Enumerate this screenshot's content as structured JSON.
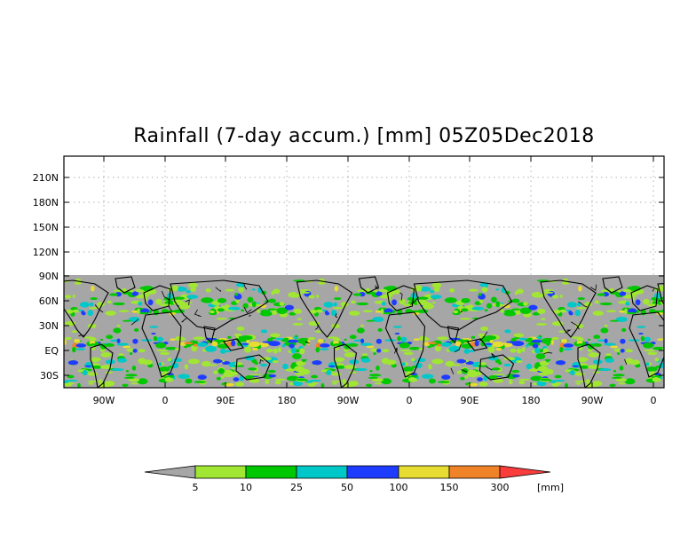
{
  "title": "Rainfall (7-day accum.) [mm] 05Z05Dec2018",
  "y_axis": {
    "labels": [
      "210N",
      "180N",
      "150N",
      "120N",
      "90N",
      "60N",
      "30N",
      "EQ",
      "30S"
    ]
  },
  "x_axis": {
    "labels": [
      "90W",
      "0",
      "90E",
      "180",
      "90W",
      "0",
      "90E",
      "180",
      "90W",
      "0"
    ]
  },
  "colorbar": {
    "labels": [
      "5",
      "10",
      "25",
      "50",
      "100",
      "150",
      "300"
    ],
    "unit": "[mm]",
    "colors": {
      "below_5": "#a6a6a6",
      "c5_10": "#a0e632",
      "c10_25": "#00c800",
      "c25_50": "#00c8c8",
      "c50_100": "#1e3cff",
      "c100_150": "#e6dc32",
      "c150_300": "#f08228",
      "above_300": "#fa3c3c"
    }
  },
  "map": {
    "no_data_color": "#a6a6a6",
    "background_color": "#ffffff"
  }
}
